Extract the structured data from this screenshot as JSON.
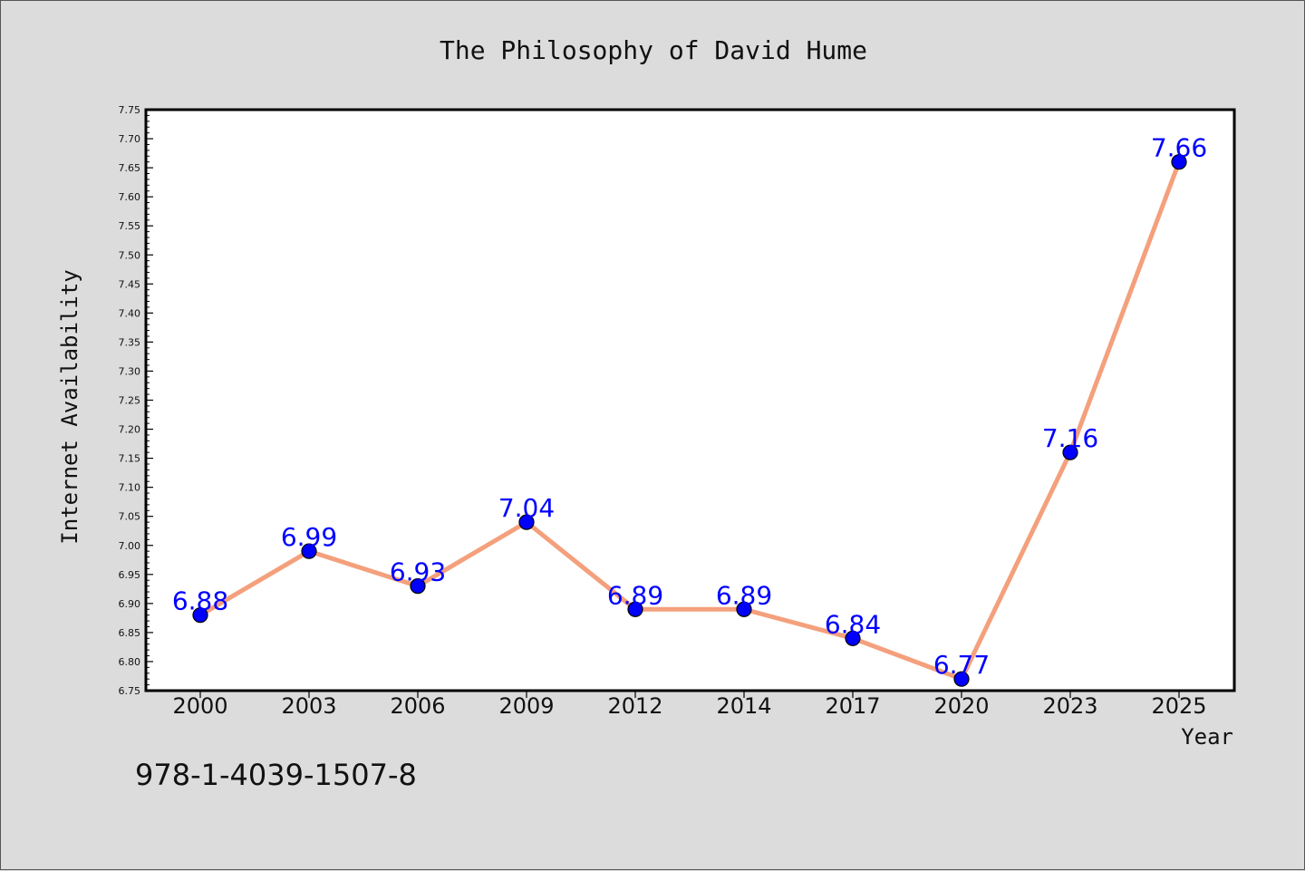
{
  "chart_data": {
    "type": "line",
    "title": "The Philosophy of David Hume",
    "xlabel": "Year",
    "ylabel": "Internet Availability",
    "categories": [
      "2000",
      "2003",
      "2006",
      "2009",
      "2012",
      "2014",
      "2017",
      "2020",
      "2023",
      "2025"
    ],
    "series": [
      {
        "values": [
          6.88,
          6.99,
          6.93,
          7.04,
          6.89,
          6.89,
          6.84,
          6.77,
          7.16,
          7.66
        ]
      }
    ],
    "data_labels": [
      "6.88",
      "6.99",
      "6.93",
      "7.04",
      "6.89",
      "6.89",
      "6.84",
      "6.77",
      "7.16",
      "7.66"
    ],
    "ylim": [
      6.75,
      7.75
    ],
    "yticks": [
      "6.75",
      "6.80",
      "6.85",
      "6.90",
      "6.95",
      "7.00",
      "7.05",
      "7.10",
      "7.15",
      "7.20",
      "7.25",
      "7.30",
      "7.35",
      "7.40",
      "7.45",
      "7.50",
      "7.55",
      "7.60",
      "7.65",
      "7.70",
      "7.75"
    ],
    "grid": false,
    "legend": "none",
    "colors": {
      "line": "#f4a07c",
      "marker": "#0000ff",
      "label": "#0000ff",
      "background": "#dcdcdc",
      "plot": "#ffffff"
    }
  },
  "footer": {
    "isbn": "978-1-4039-1507-8"
  }
}
